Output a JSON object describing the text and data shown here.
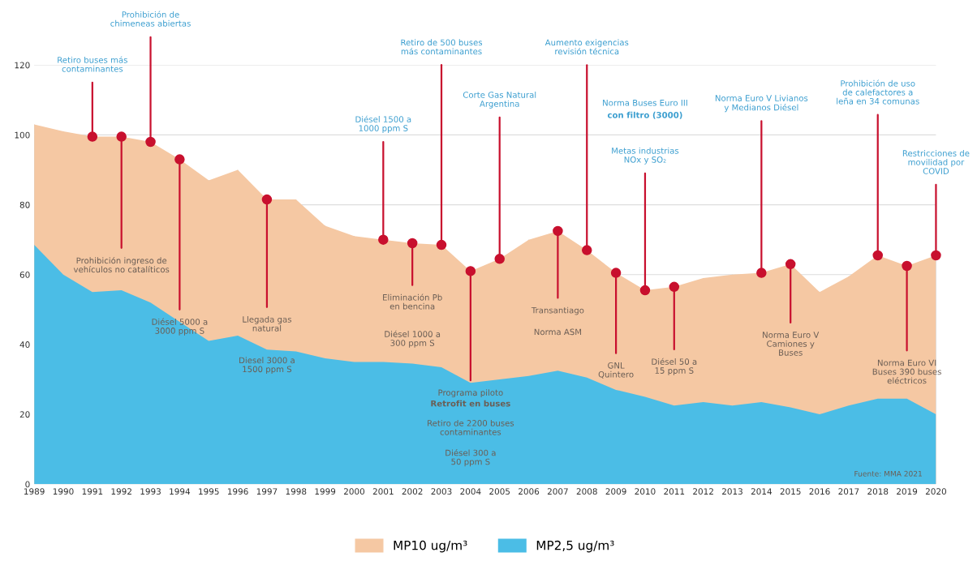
{
  "chart_data": {
    "type": "area",
    "x": [
      1989,
      1990,
      1991,
      1992,
      1993,
      1994,
      1995,
      1996,
      1997,
      1998,
      1999,
      2000,
      2001,
      2002,
      2003,
      2004,
      2005,
      2006,
      2007,
      2008,
      2009,
      2010,
      2011,
      2012,
      2013,
      2014,
      2015,
      2016,
      2017,
      2018,
      2019,
      2020
    ],
    "series": [
      {
        "name": "MP10 ug/m³",
        "color": "#f5c8a3",
        "values": [
          103,
          101,
          99.5,
          99.5,
          98,
          93,
          87,
          90,
          81.5,
          81.5,
          74,
          71,
          70,
          69,
          68.5,
          61,
          64.5,
          70,
          72.5,
          67,
          60.5,
          55.5,
          56.5,
          59,
          60,
          60.5,
          63,
          55,
          59.5,
          65.5,
          62.5,
          65.5
        ]
      },
      {
        "name": "MP2,5 ug/m³",
        "color": "#4bbde6",
        "values": [
          68.5,
          60,
          55,
          55.5,
          52,
          46.5,
          41,
          42.5,
          38.5,
          38,
          36,
          35,
          35,
          34.5,
          33.5,
          29,
          30,
          31,
          32.5,
          30.5,
          27,
          25,
          22.5,
          23.5,
          22.5,
          23.5,
          22,
          20,
          22.5,
          24.5,
          24.5,
          20
        ]
      }
    ],
    "xlim": [
      1989,
      2020
    ],
    "xticks": [
      1989,
      1990,
      1991,
      1992,
      1993,
      1994,
      1995,
      1996,
      1997,
      1998,
      1999,
      2000,
      2001,
      2002,
      2003,
      2004,
      2005,
      2006,
      2007,
      2008,
      2009,
      2010,
      2011,
      2012,
      2013,
      2014,
      2015,
      2016,
      2017,
      2018,
      2019,
      2020
    ],
    "ylim": [
      0,
      120
    ],
    "yticks": [
      0,
      20,
      40,
      60,
      80,
      100,
      120
    ],
    "grid": true,
    "legend": "bottom",
    "annotations": [
      {
        "text": "Retiro buses más\ncontaminantes",
        "x": 1991,
        "y": 99.5
      },
      {
        "text": "Prohibición ingreso de\nvehículos no catalíticos",
        "x": 1992,
        "y": 99.5
      },
      {
        "text": "Prohibición de\nchimeneas abiertas",
        "x": 1993,
        "y": 98
      },
      {
        "text": "Diésel 5000 a\n3000 ppm S",
        "x": 1994,
        "y": 93
      },
      {
        "text": "Llegada gas\nnatural",
        "x": 1997,
        "y": 81.5
      },
      "Diesel 3000 a\n1500 ppm S",
      {
        "text": "Diésel 1500 a\n1000 ppm S",
        "x": 2001,
        "y": 70
      },
      {
        "text": "Eliminación Pb\nen bencina",
        "x": 2002,
        "y": 69
      },
      "Diésel 1000 a\n300 ppm S",
      {
        "text": "Retiro de 500 buses\nmás contaminantes",
        "x": 2003,
        "y": 68.5
      },
      {
        "text": "Programa piloto",
        "x": 2004,
        "y": 61
      },
      "Retrofit en buses",
      "Retiro de 2200 buses\ncontaminantes",
      "Diésel 300 a\n50 ppm S",
      {
        "text": "Corte Gas Natural\nArgentina",
        "x": 2005,
        "y": 64.5
      },
      {
        "text": "Transantiago",
        "x": 2007,
        "y": 72.5
      },
      "Norma ASM",
      {
        "text": "Aumento exigencias\nrevisión técnica",
        "x": 2008,
        "y": 67
      },
      {
        "text": "GNL\nQuintero",
        "x": 2009,
        "y": 60.5
      },
      {
        "text": "Metas industrias\nNOx y SO₂",
        "x": 2010,
        "y": 55.5
      },
      "Norma Buses Euro III",
      "con filtro (3000)",
      {
        "text": "Diésel 50 a\n15 ppm S",
        "x": 2011,
        "y": 56.5
      },
      {
        "text": "Norma Euro V Livianos\ny Medianos Diésel",
        "x": 2014,
        "y": 60.5
      },
      {
        "text": "Norma Euro V\nCamiones y\nBuses",
        "x": 2015,
        "y": 63
      },
      {
        "text": "Prohibición de uso\nde calefactores a\nleña en 34 comunas",
        "x": 2018,
        "y": 65.5
      },
      {
        "text": "Norma Euro VI\nBuses 390 buses\neléctricos",
        "x": 2019,
        "y": 62.5
      },
      {
        "text": "Restricciones de\nmovilidad por\nCOVID",
        "x": 2020,
        "y": 65.5
      },
      "Fuente: MMA 2021"
    ]
  }
}
